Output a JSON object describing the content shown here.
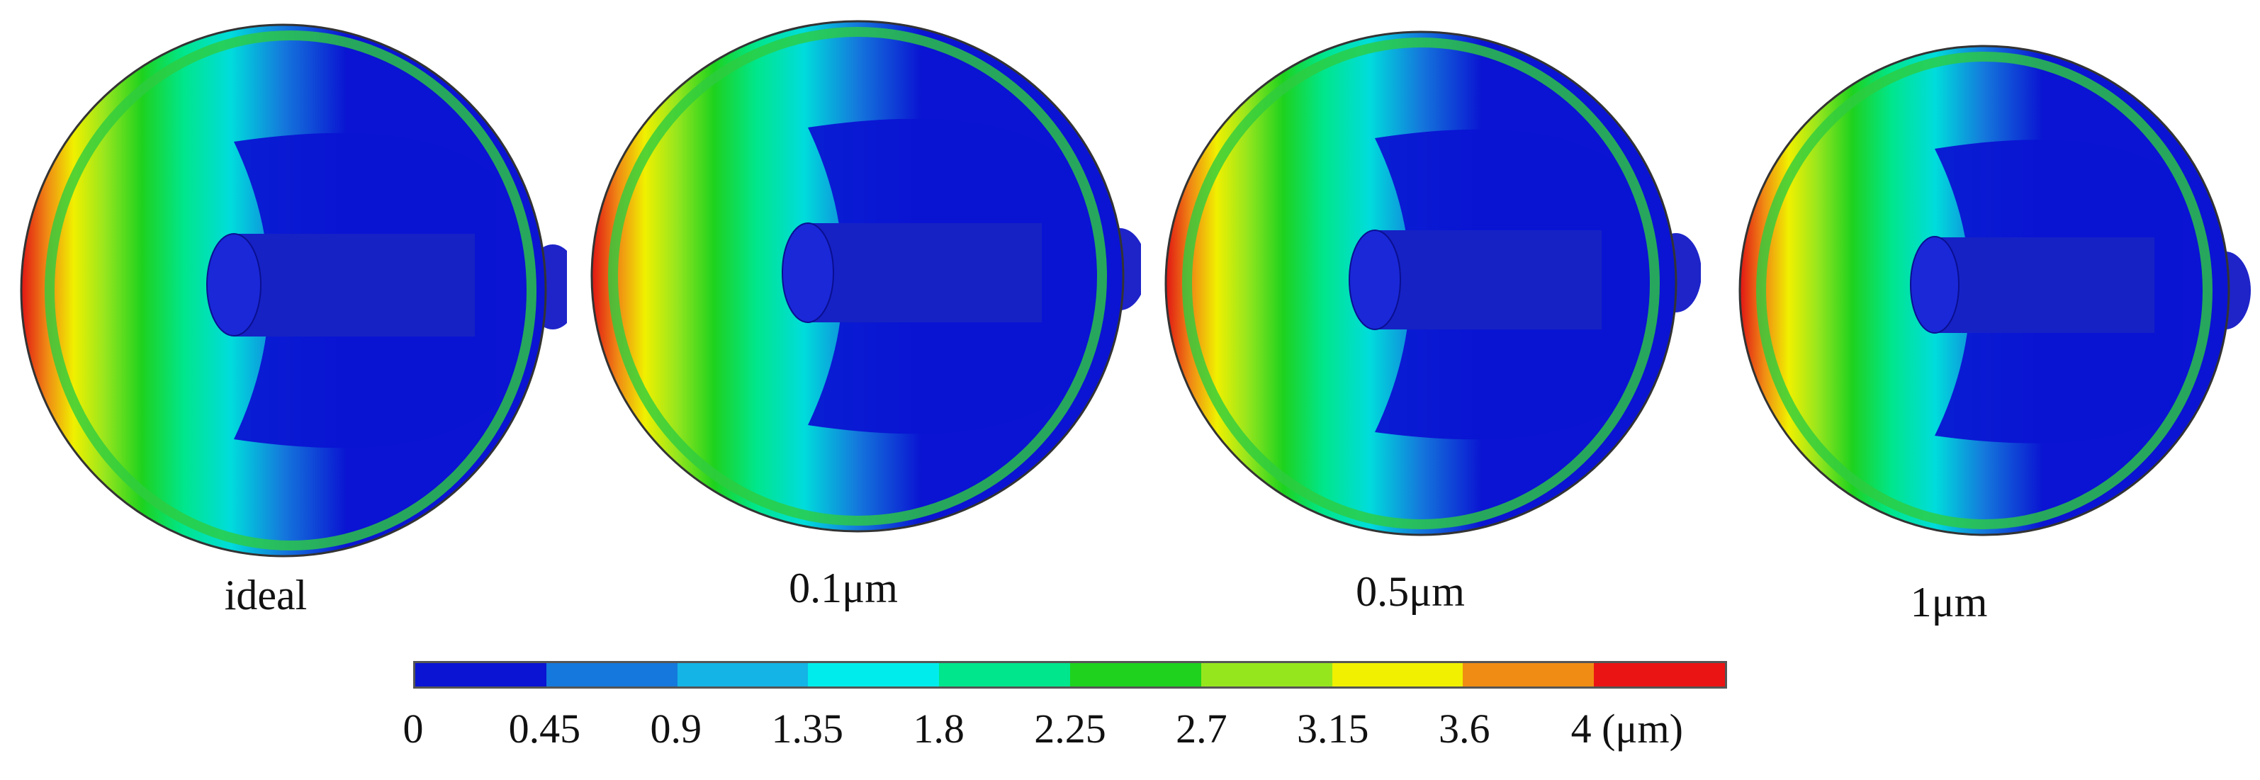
{
  "panels": [
    {
      "caption": "ideal"
    },
    {
      "caption": "0.1μm"
    },
    {
      "caption": "0.5μm"
    },
    {
      "caption": "1μm"
    }
  ],
  "colorbar": {
    "colors": [
      "#0a14d2",
      "#1478dc",
      "#14b4e6",
      "#00ecec",
      "#00e68c",
      "#1ed21e",
      "#96e61e",
      "#f0f000",
      "#f08c14",
      "#eb1414"
    ],
    "ticks": [
      "0",
      "0.45",
      "0.9",
      "1.35",
      "1.8",
      "2.25",
      "2.7",
      "3.15",
      "3.6",
      "4 (μm)"
    ]
  }
}
